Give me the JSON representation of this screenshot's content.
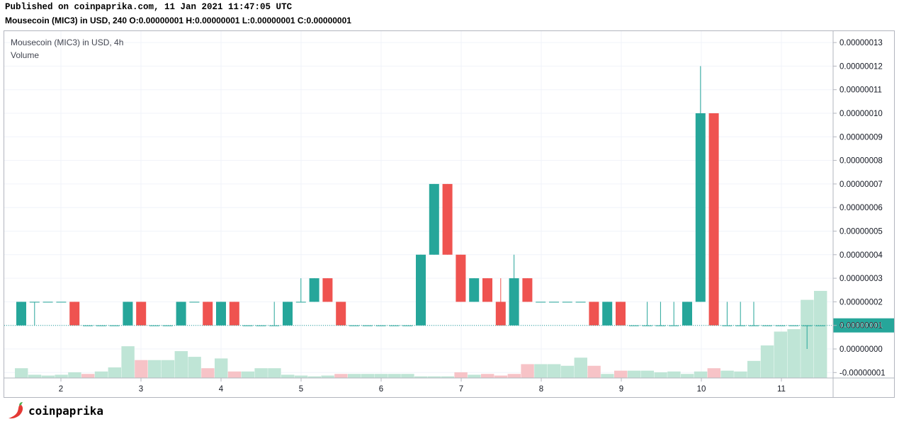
{
  "header": {
    "published": "Published on coinpaprika.com, 11 Jan 2021 11:47:05 UTC",
    "ohlc_line": "Mousecoin (MIC3) in USD, 240 O:0.00000001 H:0.00000001 L:0.00000001 C:0.00000001"
  },
  "legend": {
    "symbol": "Mousecoin (MIC3) in USD, 4h",
    "volume": "Volume"
  },
  "logo": {
    "text": "coinpaprika",
    "icon": "chili-pepper-icon"
  },
  "colors": {
    "up": "#26a69a",
    "down": "#ef5350",
    "vol_up": "#bfe5d6",
    "vol_down": "#f7c3c7",
    "grid": "#f0f3fa",
    "axis_line": "#b2b5be",
    "price_line": "#26a69a"
  },
  "chart_data": {
    "type": "candlestick",
    "title": "Mousecoin (MIC3) in USD, 4h",
    "interval": "4h",
    "x_ticks": [
      "2",
      "3",
      "4",
      "5",
      "6",
      "7",
      "8",
      "9",
      "10",
      "11"
    ],
    "y_ticks": [
      "0.00000013",
      "0.00000012",
      "0.00000011",
      "0.00000010",
      "0.00000009",
      "0.00000008",
      "0.00000007",
      "0.00000006",
      "0.00000005",
      "0.00000004",
      "0.00000003",
      "0.00000002",
      "0.00000001",
      "0.00000000",
      "-0.00000001"
    ],
    "y_unit": 1e-08,
    "ylim": [
      -1.2,
      13.4
    ],
    "last_price_label": "0.00000001",
    "last_price": 1,
    "grid": true,
    "series_note": "values in units of 1e-8 USD; candles are [open, high, low, close]",
    "candles": [
      [
        1,
        2,
        1,
        2
      ],
      [
        2,
        2,
        1,
        2
      ],
      [
        2,
        2,
        2,
        2
      ],
      [
        2,
        2,
        2,
        2
      ],
      [
        2,
        2,
        1,
        1
      ],
      [
        1,
        1,
        1,
        1
      ],
      [
        1,
        1,
        1,
        1
      ],
      [
        1,
        1,
        1,
        1
      ],
      [
        1,
        2,
        1,
        2
      ],
      [
        2,
        2,
        1,
        1
      ],
      [
        1,
        1,
        1,
        1
      ],
      [
        1,
        1,
        1,
        1
      ],
      [
        1,
        2,
        1,
        2
      ],
      [
        2,
        2,
        2,
        2
      ],
      [
        2,
        2,
        1,
        1
      ],
      [
        1,
        2,
        1,
        2
      ],
      [
        2,
        2,
        1,
        1
      ],
      [
        1,
        1,
        1,
        1
      ],
      [
        1,
        1,
        1,
        1
      ],
      [
        1,
        2,
        1,
        1
      ],
      [
        1,
        2,
        1,
        2
      ],
      [
        2,
        3,
        2,
        2
      ],
      [
        2,
        3,
        2,
        3
      ],
      [
        3,
        3,
        2,
        2
      ],
      [
        2,
        2,
        1,
        1
      ],
      [
        1,
        1,
        1,
        1
      ],
      [
        1,
        1,
        1,
        1
      ],
      [
        1,
        1,
        1,
        1
      ],
      [
        1,
        1,
        1,
        1
      ],
      [
        1,
        1,
        1,
        1
      ],
      [
        1,
        4,
        1,
        4
      ],
      [
        4,
        7,
        4,
        7
      ],
      [
        7,
        7,
        4,
        4
      ],
      [
        4,
        4,
        2,
        2
      ],
      [
        2,
        3,
        2,
        3
      ],
      [
        3,
        3,
        2,
        2
      ],
      [
        2,
        3,
        1,
        1
      ],
      [
        1,
        4,
        1,
        3
      ],
      [
        3,
        3,
        2,
        2
      ],
      [
        2,
        2,
        2,
        2
      ],
      [
        2,
        2,
        2,
        2
      ],
      [
        2,
        2,
        2,
        2
      ],
      [
        2,
        2,
        2,
        2
      ],
      [
        2,
        2,
        1,
        1
      ],
      [
        1,
        2,
        1,
        2
      ],
      [
        2,
        2,
        1,
        1
      ],
      [
        1,
        1,
        1,
        1
      ],
      [
        1,
        2,
        1,
        1
      ],
      [
        1,
        2,
        1,
        1
      ],
      [
        1,
        2,
        1,
        1
      ],
      [
        1,
        2,
        1,
        2
      ],
      [
        2,
        12,
        2,
        10
      ],
      [
        10,
        10,
        1,
        1
      ],
      [
        1,
        2,
        1,
        1
      ],
      [
        1,
        2,
        1,
        1
      ],
      [
        1,
        2,
        1,
        1
      ],
      [
        1,
        1,
        1,
        1
      ],
      [
        1,
        1,
        1,
        1
      ],
      [
        1,
        1,
        1,
        1
      ],
      [
        1,
        1,
        0,
        1
      ],
      [
        1,
        1,
        1,
        1
      ]
    ],
    "volumes": [
      [
        0.12,
        "up"
      ],
      [
        0.04,
        "up"
      ],
      [
        0.03,
        "up"
      ],
      [
        0.04,
        "up"
      ],
      [
        0.07,
        "up"
      ],
      [
        0.05,
        "down"
      ],
      [
        0.08,
        "up"
      ],
      [
        0.13,
        "up"
      ],
      [
        0.39,
        "up"
      ],
      [
        0.22,
        "down"
      ],
      [
        0.22,
        "up"
      ],
      [
        0.22,
        "up"
      ],
      [
        0.33,
        "up"
      ],
      [
        0.26,
        "up"
      ],
      [
        0.12,
        "down"
      ],
      [
        0.24,
        "up"
      ],
      [
        0.08,
        "down"
      ],
      [
        0.08,
        "up"
      ],
      [
        0.12,
        "up"
      ],
      [
        0.12,
        "up"
      ],
      [
        0.04,
        "up"
      ],
      [
        0.03,
        "up"
      ],
      [
        0.02,
        "up"
      ],
      [
        0.03,
        "up"
      ],
      [
        0.05,
        "down"
      ],
      [
        0.05,
        "up"
      ],
      [
        0.05,
        "up"
      ],
      [
        0.05,
        "up"
      ],
      [
        0.05,
        "up"
      ],
      [
        0.05,
        "up"
      ],
      [
        0.02,
        "up"
      ],
      [
        0.02,
        "up"
      ],
      [
        0.02,
        "up"
      ],
      [
        0.07,
        "down"
      ],
      [
        0.04,
        "up"
      ],
      [
        0.05,
        "down"
      ],
      [
        0.03,
        "down"
      ],
      [
        0.05,
        "down"
      ],
      [
        0.17,
        "down"
      ],
      [
        0.17,
        "up"
      ],
      [
        0.17,
        "up"
      ],
      [
        0.15,
        "up"
      ],
      [
        0.25,
        "up"
      ],
      [
        0.15,
        "down"
      ],
      [
        0.05,
        "up"
      ],
      [
        0.09,
        "down"
      ],
      [
        0.09,
        "up"
      ],
      [
        0.09,
        "up"
      ],
      [
        0.07,
        "up"
      ],
      [
        0.08,
        "up"
      ],
      [
        0.05,
        "up"
      ],
      [
        0.08,
        "up"
      ],
      [
        0.12,
        "down"
      ],
      [
        0.09,
        "up"
      ],
      [
        0.08,
        "up"
      ],
      [
        0.21,
        "up"
      ],
      [
        0.4,
        "up"
      ],
      [
        0.57,
        "up"
      ],
      [
        0.6,
        "up"
      ],
      [
        0.96,
        "up"
      ],
      [
        1.07,
        "up"
      ]
    ]
  }
}
